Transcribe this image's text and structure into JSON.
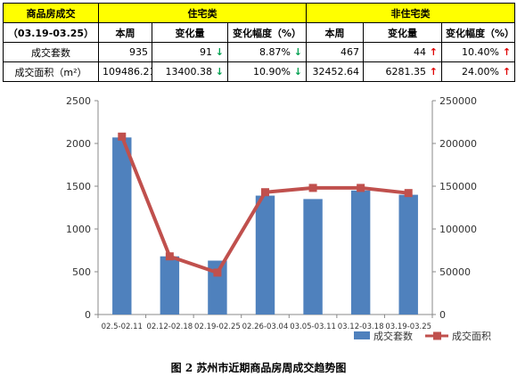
{
  "table": {
    "header1": [
      "商品房成交",
      "住宅类",
      "非住宅类"
    ],
    "header2": [
      "（03.19-03.25）",
      "本周",
      "变化量",
      "变化幅度（%）",
      "本周",
      "变化量",
      "变化幅度（%）"
    ],
    "rows": [
      {
        "label": "成交套数",
        "cells": [
          "935",
          "91",
          "8.87%",
          "467",
          "44",
          "10.40%"
        ],
        "dirs": [
          "",
          "down",
          "down",
          "",
          "up",
          "up"
        ]
      },
      {
        "label": "成交面积（m²）",
        "cells": [
          "109486.21",
          "13400.38",
          "10.90%",
          "32452.64",
          "6281.35",
          "24.00%"
        ],
        "dirs": [
          "",
          "down",
          "down",
          "",
          "up",
          "up"
        ]
      }
    ]
  },
  "chart_data": {
    "type": "bar",
    "categories": [
      "02.5-02.11",
      "02.12-02.18",
      "02.19-02.25",
      "02.26-03.04",
      "03.05-03.11",
      "03.12-03.18",
      "03.19-03.25"
    ],
    "series": [
      {
        "name": "成交套数",
        "type": "bar",
        "axis": "left",
        "color": "#4f81bd",
        "values": [
          2070,
          680,
          630,
          1390,
          1350,
          1450,
          1400
        ]
      },
      {
        "name": "成交面积",
        "type": "line",
        "axis": "right",
        "color": "#c0504d",
        "values": [
          208000,
          68000,
          49000,
          143000,
          148000,
          148000,
          142000
        ]
      }
    ],
    "ylim": [
      0,
      2500
    ],
    "y2lim": [
      0,
      250000
    ],
    "yticks": [
      "0",
      "500",
      "1000",
      "1500",
      "2000",
      "2500"
    ],
    "y2ticks": [
      "0",
      "50000",
      "100000",
      "150000",
      "200000",
      "250000"
    ],
    "legend_position": "bottom-right"
  },
  "caption": "图 2  苏州市近期商品房周成交趋势图"
}
